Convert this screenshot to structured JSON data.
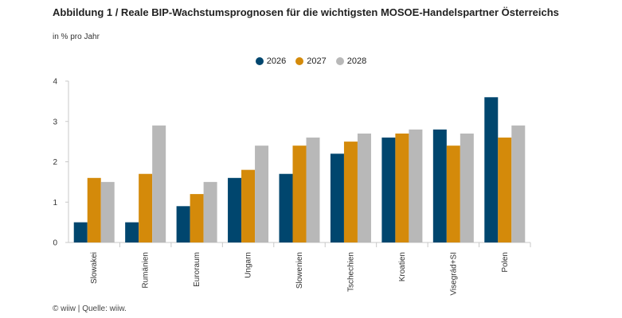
{
  "chart_data": {
    "type": "bar",
    "title": "Abbildung 1 / Reale BIP-Wachstumsprognosen für die wichtigsten MOSOE-Handelspartner Österreichs",
    "subtitle": "in % pro Jahr",
    "categories": [
      "Slowakei",
      "Rumänien",
      "Euroraum",
      "Ungarn",
      "Slowenien",
      "Tschechien",
      "Kroatien",
      "Visegrád+SI",
      "Polen"
    ],
    "series": [
      {
        "name": "2026",
        "color": "#00466e",
        "values": [
          0.5,
          0.5,
          0.9,
          1.6,
          1.7,
          2.2,
          2.6,
          2.8,
          3.6
        ]
      },
      {
        "name": "2027",
        "color": "#d48a0a",
        "values": [
          1.6,
          1.7,
          1.2,
          1.8,
          2.4,
          2.5,
          2.7,
          2.4,
          2.6
        ]
      },
      {
        "name": "2028",
        "color": "#b8b8b8",
        "values": [
          1.5,
          2.9,
          1.5,
          2.4,
          2.6,
          2.7,
          2.8,
          2.7,
          2.9
        ]
      }
    ],
    "ylim": [
      0,
      4
    ],
    "yticks": [
      0,
      1,
      2,
      3,
      4
    ],
    "grid": false,
    "legend_position": "top-center"
  },
  "footer": "© wiiw | Quelle: wiiw."
}
